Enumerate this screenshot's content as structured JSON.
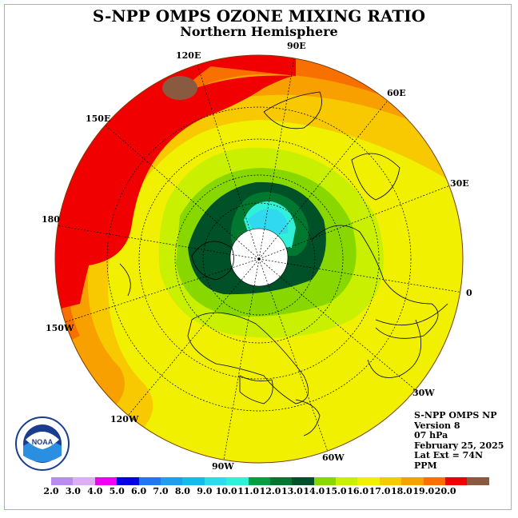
{
  "title": "S-NPP OMPS OZONE MIXING RATIO",
  "subtitle": "Northern Hemisphere",
  "longitude_labels": [
    "120E",
    "90E",
    "60E",
    "30E",
    "0",
    "30W",
    "60W",
    "90W",
    "120W",
    "150W",
    "180",
    "150E"
  ],
  "info": {
    "instrument": "S-NPP OMPS NP",
    "version": "Version 8",
    "level": "07 hPa",
    "date": "February 25, 2025",
    "lat_ext": "Lat Ext = 74N",
    "units": "PPM"
  },
  "colorbar": {
    "ticks": [
      "2.0",
      "3.0",
      "4.0",
      "5.0",
      "6.0",
      "7.0",
      "8.0",
      "9.0",
      "10.0",
      "11.0",
      "12.0",
      "13.0",
      "14.0",
      "15.0",
      "16.0",
      "17.0",
      "18.0",
      "19.0",
      "20.0"
    ],
    "colors": [
      "#b98cf2",
      "#dcaef5",
      "#f000f0",
      "#0000e0",
      "#1e78f0",
      "#1e9ef0",
      "#18b8f0",
      "#30d8f0",
      "#30f0d8",
      "#00a040",
      "#007830",
      "#005028",
      "#88d800",
      "#c8f000",
      "#f0f000",
      "#f8c800",
      "#f8a000",
      "#f87000",
      "#f00000",
      "#8a5a40"
    ]
  },
  "logo_text": "NOAA"
}
